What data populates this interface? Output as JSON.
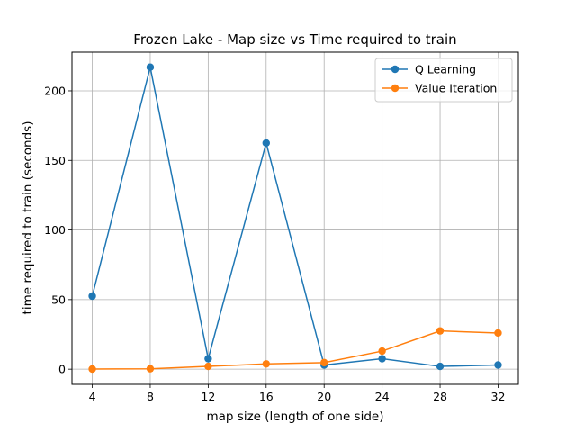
{
  "chart_data": {
    "type": "line",
    "title": "Frozen Lake - Map size vs Time required to train",
    "xlabel": "map size (length of one side)",
    "ylabel": "time required to train (seconds)",
    "x": [
      4,
      8,
      12,
      16,
      20,
      24,
      28,
      32
    ],
    "xticks": [
      4,
      8,
      12,
      16,
      20,
      24,
      28,
      32
    ],
    "yticks": [
      0,
      50,
      100,
      150,
      200
    ],
    "xlim": [
      2.6,
      33.4
    ],
    "ylim": [
      -10.9,
      227.8
    ],
    "grid": true,
    "legend_position": "top-right",
    "series": [
      {
        "name": "Q Learning",
        "color": "#1f77b4",
        "values": [
          52.5,
          217.0,
          7.5,
          162.5,
          3.0,
          7.5,
          2.0,
          3.0
        ]
      },
      {
        "name": "Value Iteration",
        "color": "#ff7f0e",
        "values": [
          0.1,
          0.3,
          2.0,
          3.8,
          4.7,
          13.0,
          27.5,
          26.0
        ]
      }
    ]
  }
}
